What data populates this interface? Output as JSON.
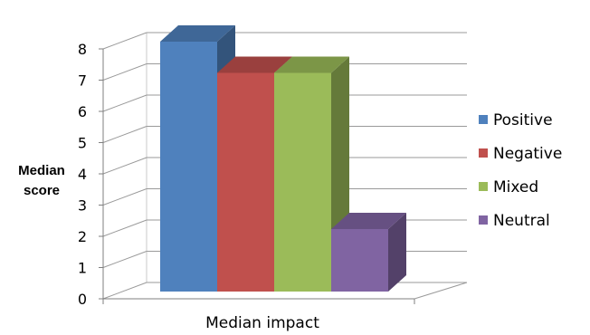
{
  "chart_data": {
    "type": "bar",
    "style": "3d-clustered-column",
    "title": "",
    "ylabel": [
      "Median",
      "score"
    ],
    "categories": [
      "Median impact"
    ],
    "ylim": [
      0,
      8
    ],
    "yticks": [
      0,
      1,
      2,
      3,
      4,
      5,
      6,
      7,
      8
    ],
    "grid": true,
    "legend_position": "right",
    "series": [
      {
        "name": "Positive",
        "values": [
          8
        ],
        "color": "#4F81BD"
      },
      {
        "name": "Negative",
        "values": [
          7
        ],
        "color": "#C0504D"
      },
      {
        "name": "Mixed",
        "values": [
          7
        ],
        "color": "#9BBB59"
      },
      {
        "name": "Neutral",
        "values": [
          2
        ],
        "color": "#8064A2"
      }
    ]
  }
}
